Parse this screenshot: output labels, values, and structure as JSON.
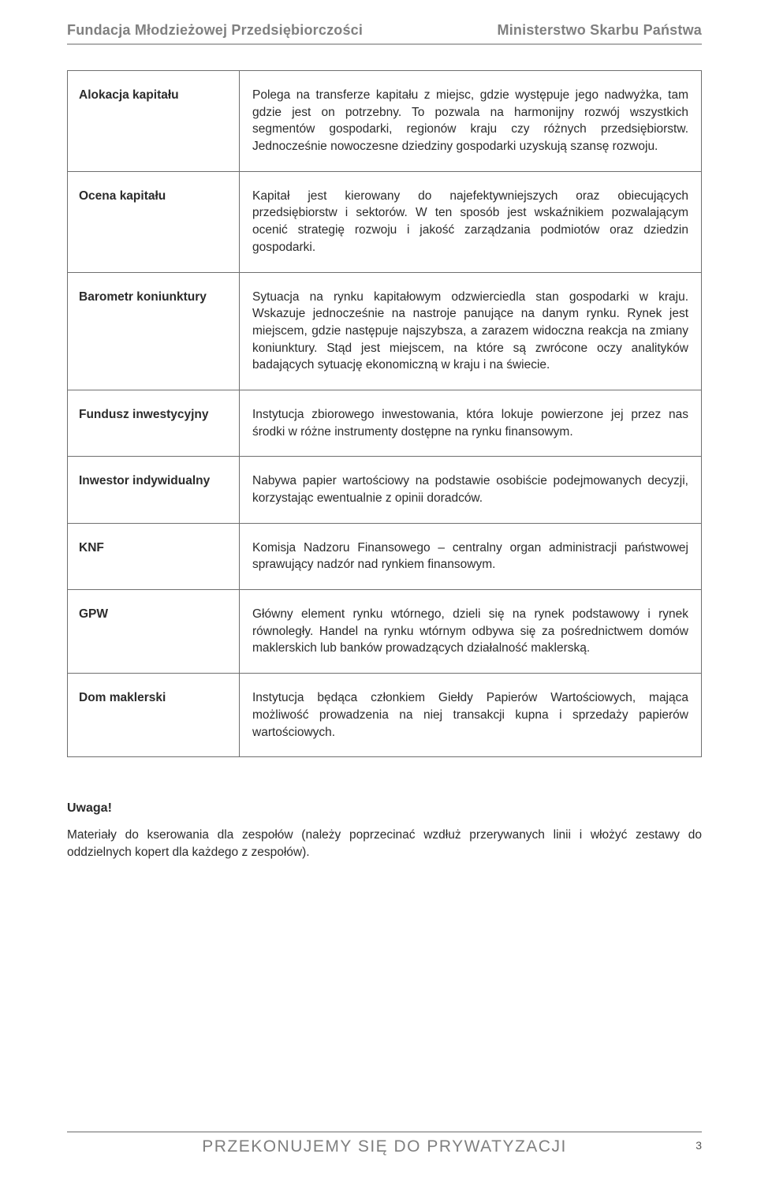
{
  "header": {
    "left": "Fundacja Młodzieżowej Przedsiębiorczości",
    "right": "Ministerstwo Skarbu Państwa"
  },
  "definitions": {
    "rows": [
      {
        "term": "Alokacja kapitału",
        "desc": "Polega na transferze kapitału z miejsc, gdzie występuje jego nadwyżka, tam gdzie jest on potrzebny. To pozwala na harmonijny rozwój wszystkich segmentów gospodarki, regionów kraju czy różnych przedsiębiorstw. Jednocześnie nowoczesne dziedziny gospodarki uzyskują szansę rozwoju."
      },
      {
        "term": "Ocena kapitału",
        "desc": "Kapitał jest kierowany do najefektywniejszych oraz obiecujących przedsiębiorstw i sektorów. W ten sposób jest wskaźnikiem pozwalającym ocenić strategię rozwoju i jakość zarządzania podmiotów oraz dziedzin gospodarki."
      },
      {
        "term": "Barometr koniunktury",
        "desc": "Sytuacja na rynku kapitałowym odzwierciedla stan gospodarki w kraju. Wskazuje jednocześnie na nastroje panujące na danym rynku. Rynek jest miejscem, gdzie następuje najszybsza, a zarazem widoczna reakcja na zmiany koniunktury. Stąd jest miejscem, na które są zwrócone oczy analityków badających sytuację ekonomiczną w kraju i na świecie."
      },
      {
        "term": "Fundusz inwestycyjny",
        "desc": "Instytucja zbiorowego inwestowania, która lokuje powierzone jej przez nas środki w różne instrumenty dostępne na rynku finansowym."
      },
      {
        "term": "Inwestor indywidualny",
        "desc": "Nabywa papier wartościowy na podstawie osobiście podejmowanych decyzji, korzystając ewentualnie z opinii doradców."
      },
      {
        "term": "KNF",
        "desc": "Komisja Nadzoru Finansowego – centralny organ administracji państwowej sprawujący nadzór nad rynkiem finansowym."
      },
      {
        "term": "GPW",
        "desc": "Główny element rynku wtórnego, dzieli się na rynek podstawowy i rynek równoległy. Handel na rynku wtórnym odbywa się za pośrednictwem domów maklerskich lub banków prowadzących działalność maklerską."
      },
      {
        "term": "Dom maklerski",
        "desc": "Instytucja będąca członkiem Giełdy Papierów Wartościowych, mająca możliwość prowadzenia na niej transakcji kupna i sprzedaży papierów wartościowych."
      }
    ]
  },
  "note": {
    "heading": "Uwaga!",
    "body": "Materiały do kserowania dla zespołów (należy poprzecinać wzdłuż przerywanych linii i włożyć zestawy do oddzielnych kopert dla każdego z zespołów)."
  },
  "footer": {
    "title": "PRZEKONUJEMY SIĘ DO PRYWATYZACJI",
    "page": "3"
  },
  "colors": {
    "text": "#2b2b2b",
    "header_gray": "#808080",
    "rule_gray": "#b0b0b0",
    "table_border": "#6f6f6f",
    "background": "#ffffff"
  },
  "typography": {
    "body_fontsize_pt": 11.5,
    "header_fontsize_pt": 13,
    "footer_title_fontsize_pt": 16
  }
}
